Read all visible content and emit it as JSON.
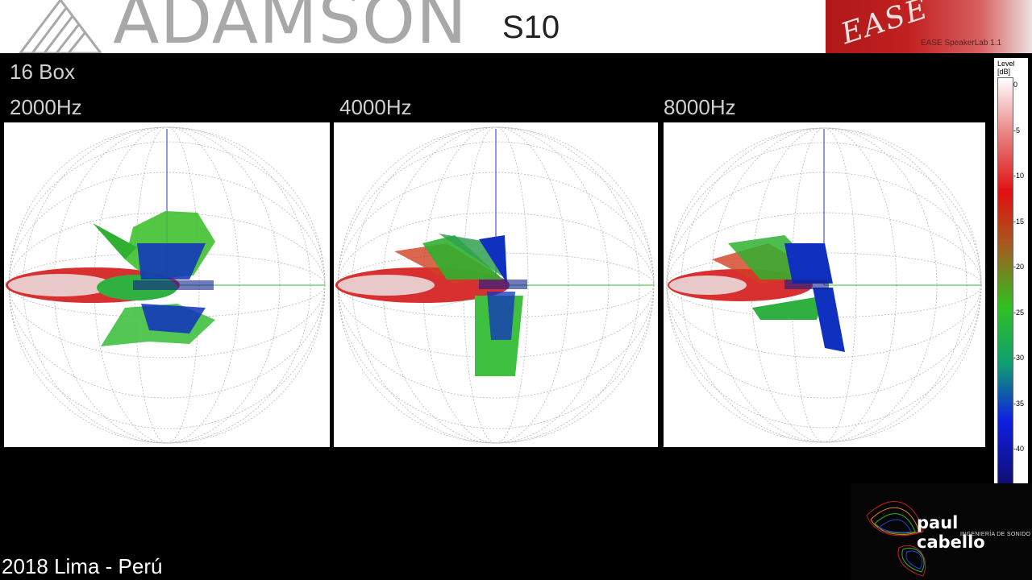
{
  "header": {
    "brand": "ADAMSON",
    "model": "S10",
    "ease_logo": "EASE",
    "ease_subtitle": "EASE SpeakerLab 1.1"
  },
  "title": "16 Box",
  "plots": [
    {
      "frequency": "2000Hz"
    },
    {
      "frequency": "4000Hz"
    },
    {
      "frequency": "8000Hz"
    }
  ],
  "level_scale": {
    "title_line1": "Level",
    "title_line2": "[dB]",
    "ticks": [
      "0",
      "-5",
      "-10",
      "-15",
      "-20",
      "-25",
      "-30",
      "-35",
      "-40"
    ],
    "colors": [
      "#ffffff",
      "#e88080",
      "#e01010",
      "#a06020",
      "#30c020",
      "#10a070",
      "#1020e0",
      "#101080",
      "#000000"
    ]
  },
  "signature": {
    "name": "paul cabello",
    "tagline": "INGENIERÍA DE SONIDO"
  },
  "footer": "2018 Lima - Perú"
}
